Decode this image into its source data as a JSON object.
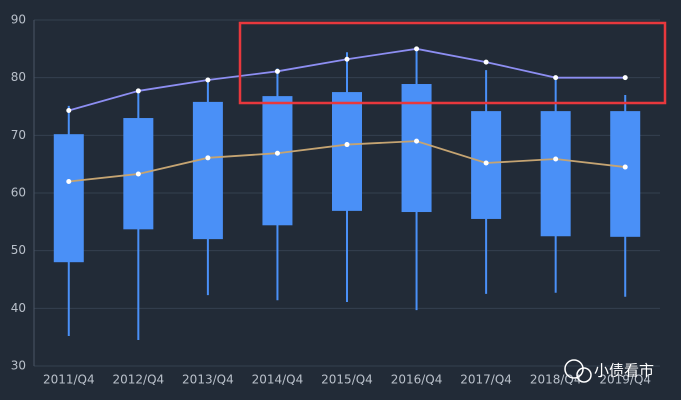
{
  "chart_data": {
    "type": "boxplot",
    "categories": [
      "2011/Q4",
      "2012/Q4",
      "2013/Q4",
      "2014/Q4",
      "2015/Q4",
      "2016/Q4",
      "2017/Q4",
      "2018/Q4",
      "2019/Q4"
    ],
    "ylim": [
      30,
      90
    ],
    "yticks": [
      30,
      40,
      50,
      60,
      70,
      80,
      90
    ],
    "grid": true,
    "series": [
      {
        "type": "boxplot",
        "color": "#4a90f7",
        "low": [
          35.2,
          34.5,
          42.3,
          41.4,
          41.1,
          39.7,
          42.5,
          42.7,
          42.0
        ],
        "q1": [
          48.0,
          53.7,
          52.0,
          54.4,
          56.9,
          56.7,
          55.5,
          52.5,
          52.4
        ],
        "q3": [
          70.2,
          73.0,
          75.8,
          76.8,
          77.5,
          78.9,
          74.2,
          74.2,
          74.2
        ],
        "high": [
          75.1,
          77.5,
          79.9,
          81.6,
          84.4,
          85.1,
          81.3,
          79.9,
          77.0
        ]
      },
      {
        "type": "line",
        "color": "#8d8ef2",
        "values": [
          74.3,
          77.7,
          79.6,
          81.1,
          83.2,
          85.0,
          82.7,
          80.0,
          80.0
        ]
      },
      {
        "type": "line",
        "color": "#c5a472",
        "values": [
          62.0,
          63.3,
          66.1,
          66.9,
          68.4,
          69.0,
          65.2,
          65.9,
          64.5
        ]
      }
    ],
    "watermark": "小债看市"
  }
}
